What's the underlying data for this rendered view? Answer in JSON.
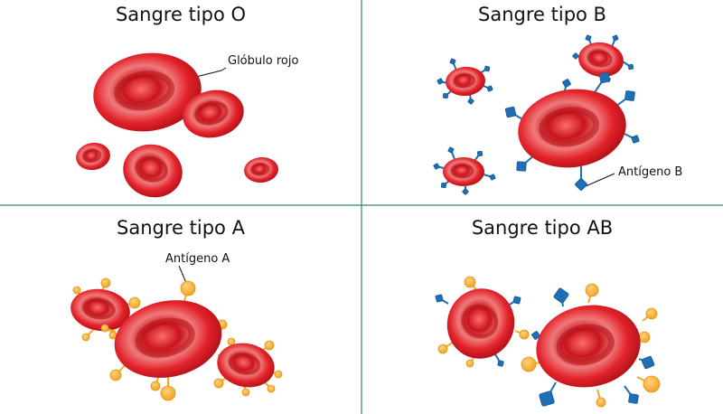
{
  "colors": {
    "divider": "#2e8b57",
    "cell_red": "#e01e24",
    "antigen_a": "#f5a623",
    "antigen_b": "#1f6fb6"
  },
  "panels": {
    "o": {
      "title": "Sangre tipo O",
      "label": "Glóbulo rojo"
    },
    "b": {
      "title": "Sangre tipo B",
      "label": "Antígeno B"
    },
    "a": {
      "title": "Sangre tipo A",
      "label": "Antígeno A"
    },
    "ab": {
      "title": "Sangre tipo AB"
    }
  },
  "icons": [
    "red-blood-cell-icon",
    "antigen-a-icon",
    "antigen-b-icon"
  ]
}
